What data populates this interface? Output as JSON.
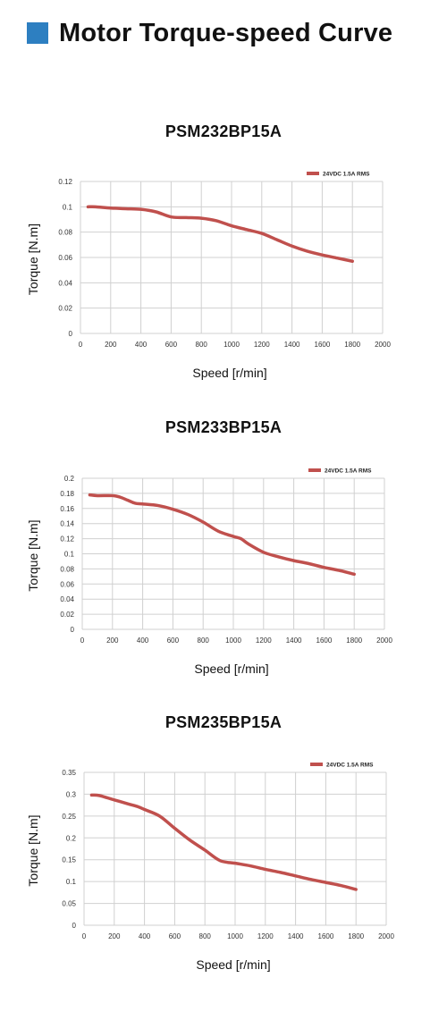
{
  "header": {
    "title": "Motor Torque-speed Curve",
    "accent_color": "#2d7fc1"
  },
  "chart_data": [
    {
      "type": "line",
      "title": "PSM232BP15A",
      "xlabel": "Speed [r/min]",
      "ylabel": "Torque [N.m]",
      "xlim": [
        0,
        2000
      ],
      "ylim": [
        0,
        0.12
      ],
      "x_ticks": [
        "0",
        "200",
        "400",
        "600",
        "800",
        "1000",
        "1200",
        "1400",
        "1600",
        "1800",
        "2000"
      ],
      "y_ticks": [
        "0",
        "0.02",
        "0.04",
        "0.06",
        "0.08",
        "0.1",
        "0.12"
      ],
      "grid": true,
      "legend_position": "top-right",
      "series": [
        {
          "name": "24VDC 1.5A RMS",
          "color": "#c0504d",
          "x": [
            50,
            100,
            200,
            300,
            400,
            500,
            600,
            700,
            800,
            900,
            1000,
            1100,
            1200,
            1300,
            1400,
            1500,
            1600,
            1700,
            1800
          ],
          "y": [
            0.1,
            0.1,
            0.099,
            0.0985,
            0.098,
            0.096,
            0.092,
            0.0915,
            0.091,
            0.089,
            0.085,
            0.082,
            0.079,
            0.074,
            0.069,
            0.065,
            0.062,
            0.0595,
            0.057
          ]
        }
      ]
    },
    {
      "type": "line",
      "title": "PSM233BP15A",
      "xlabel": "Speed [r/min]",
      "ylabel": "Torque [N.m]",
      "xlim": [
        0,
        2000
      ],
      "ylim": [
        0,
        0.2
      ],
      "x_ticks": [
        "0",
        "200",
        "400",
        "600",
        "800",
        "1000",
        "1200",
        "1400",
        "1600",
        "1800",
        "2000"
      ],
      "y_ticks": [
        "0",
        "0.02",
        "0.04",
        "0.06",
        "0.08",
        "0.1",
        "0.12",
        "0.14",
        "0.16",
        "0.18",
        "0.2"
      ],
      "grid": true,
      "legend_position": "top-right",
      "series": [
        {
          "name": "24VDC 1.5A RMS",
          "color": "#c0504d",
          "x": [
            50,
            100,
            200,
            250,
            300,
            350,
            400,
            500,
            600,
            700,
            800,
            900,
            1000,
            1050,
            1100,
            1200,
            1300,
            1400,
            1500,
            1600,
            1700,
            1800
          ],
          "y": [
            0.178,
            0.177,
            0.177,
            0.175,
            0.171,
            0.167,
            0.166,
            0.164,
            0.159,
            0.152,
            0.142,
            0.13,
            0.123,
            0.12,
            0.113,
            0.102,
            0.096,
            0.091,
            0.087,
            0.082,
            0.078,
            0.073
          ]
        }
      ]
    },
    {
      "type": "line",
      "title": "PSM235BP15A",
      "xlabel": "Speed [r/min]",
      "ylabel": "Torque [N.m]",
      "xlim": [
        0,
        2000
      ],
      "ylim": [
        0,
        0.35
      ],
      "x_ticks": [
        "0",
        "200",
        "400",
        "600",
        "800",
        "1000",
        "1200",
        "1400",
        "1600",
        "1800",
        "2000"
      ],
      "y_ticks": [
        "0",
        "0.05",
        "0.1",
        "0.15",
        "0.2",
        "0.25",
        "0.3",
        "0.35"
      ],
      "grid": true,
      "legend_position": "top-right",
      "series": [
        {
          "name": "24VDC 1.5A RMS",
          "color": "#c0504d",
          "x": [
            50,
            100,
            200,
            300,
            360,
            400,
            500,
            600,
            700,
            800,
            900,
            1000,
            1100,
            1200,
            1300,
            1400,
            1500,
            1600,
            1700,
            1800
          ],
          "y": [
            0.298,
            0.297,
            0.287,
            0.277,
            0.271,
            0.265,
            0.25,
            0.222,
            0.195,
            0.172,
            0.148,
            0.142,
            0.136,
            0.128,
            0.121,
            0.113,
            0.105,
            0.098,
            0.091,
            0.082
          ]
        }
      ]
    }
  ]
}
